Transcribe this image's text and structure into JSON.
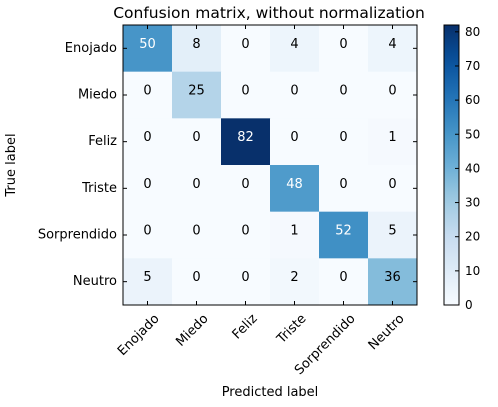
{
  "chart_data": {
    "type": "heatmap",
    "title": "Confusion matrix, without normalization",
    "xlabel": "Predicted label",
    "ylabel": "True label",
    "row_labels": [
      "Enojado",
      "Miedo",
      "Feliz",
      "Triste",
      "Sorprendido",
      "Neutro"
    ],
    "col_labels": [
      "Enojado",
      "Miedo",
      "Feliz",
      "Triste",
      "Sorprendido",
      "Neutro"
    ],
    "values": [
      [
        50,
        8,
        0,
        4,
        0,
        4
      ],
      [
        0,
        25,
        0,
        0,
        0,
        0
      ],
      [
        0,
        0,
        82,
        0,
        0,
        1
      ],
      [
        0,
        0,
        0,
        48,
        0,
        0
      ],
      [
        0,
        0,
        0,
        1,
        52,
        5
      ],
      [
        5,
        0,
        0,
        2,
        0,
        36
      ]
    ],
    "colormap": "Blues",
    "colorbar": {
      "range": [
        0,
        82
      ],
      "ticks": [
        0,
        10,
        20,
        30,
        40,
        50,
        60,
        70,
        80
      ]
    }
  }
}
